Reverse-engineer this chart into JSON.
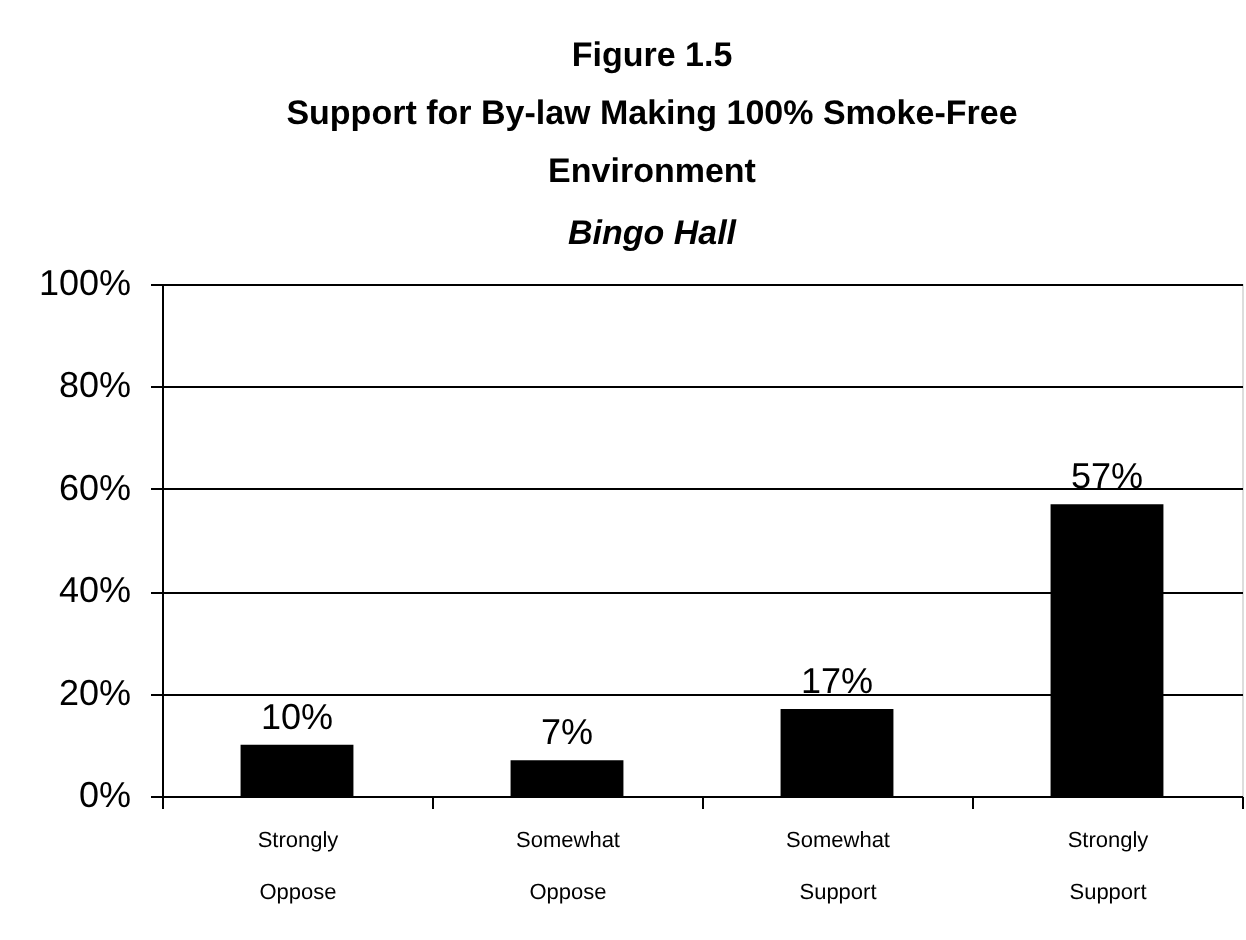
{
  "chart_data": {
    "type": "bar",
    "title": "Figure 1.5\nSupport for By-law Making 100% Smoke-Free\nEnvironment",
    "subtitle": "Bingo Hall",
    "categories": [
      "Strongly Oppose",
      "Somewhat Oppose",
      "Somewhat Support",
      "Strongly Support"
    ],
    "values": [
      10,
      7,
      17,
      57
    ],
    "color": "#000000",
    "value_labels": [
      "10%",
      "7%",
      "17%",
      "57%"
    ],
    "ylim": [
      0,
      100
    ],
    "yticks": [
      {
        "value": 0,
        "label": "0%"
      },
      {
        "value": 20,
        "label": "20%"
      },
      {
        "value": 40,
        "label": "40%"
      },
      {
        "value": 60,
        "label": "60%"
      },
      {
        "value": 80,
        "label": "80%"
      },
      {
        "value": 100,
        "label": "100%"
      }
    ],
    "grid": "y"
  }
}
